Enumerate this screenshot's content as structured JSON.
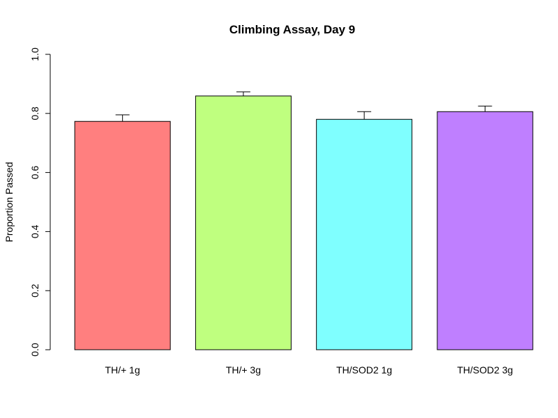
{
  "chart_data": {
    "type": "bar",
    "title": "Climbing Assay, Day 9",
    "xlabel": "",
    "ylabel": "Proportion Passed",
    "ylim": [
      0,
      1.0
    ],
    "yticks": [
      "0.0",
      "0.2",
      "0.4",
      "0.6",
      "0.8",
      "1.0"
    ],
    "categories": [
      "TH/+ 1g",
      "TH/+ 3g",
      "TH/SOD2 1g",
      "TH/SOD2 3g"
    ],
    "values": [
      0.773,
      0.859,
      0.78,
      0.806
    ],
    "error_upper": [
      0.795,
      0.873,
      0.806,
      0.825
    ],
    "colors": [
      "#ff7f7f",
      "#bfff7f",
      "#7fffff",
      "#bf7fff"
    ],
    "grid": false,
    "legend": "none"
  }
}
